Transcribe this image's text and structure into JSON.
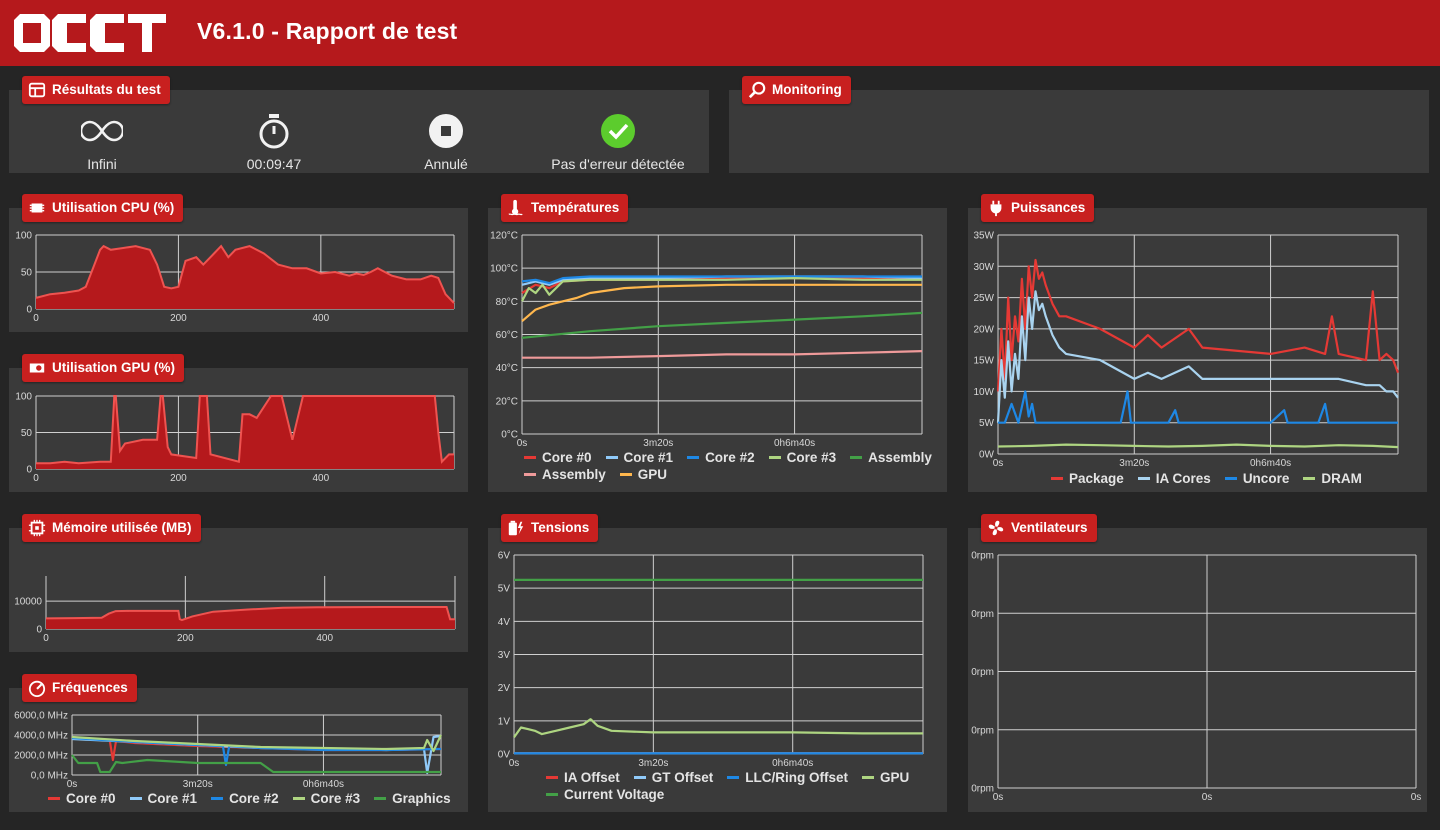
{
  "app": {
    "title": "V6.1.0 - Rapport de test",
    "logo_text": "OCCT"
  },
  "results": {
    "title": "Résultats du test",
    "items": [
      {
        "icon": "infinity-icon",
        "label": "Infini"
      },
      {
        "icon": "stopwatch-icon",
        "label": "00:09:47"
      },
      {
        "icon": "stop-icon",
        "label": "Annulé"
      },
      {
        "icon": "check-icon",
        "label": "Pas d'erreur détectée",
        "color": "#5ccc2d"
      }
    ]
  },
  "monitoring": {
    "title": "Monitoring"
  },
  "colors": {
    "accent": "#c8201f",
    "fill": "#b5191c",
    "line": "#ef5350"
  },
  "panels": {
    "cpu": {
      "title": "Utilisation CPU (%)"
    },
    "gpu": {
      "title": "Utilisation GPU (%)"
    },
    "mem": {
      "title": "Mémoire utilisée (MB)"
    },
    "freq": {
      "title": "Fréquences"
    },
    "temp": {
      "title": "Températures"
    },
    "volt": {
      "title": "Tensions"
    },
    "power": {
      "title": "Puissances"
    },
    "fans": {
      "title": "Ventilateurs"
    }
  },
  "chart_data": [
    {
      "id": "cpu",
      "type": "area",
      "title": "Utilisation CPU (%)",
      "xlim": [
        0,
        587
      ],
      "xticks": [
        0,
        200,
        400
      ],
      "ylim": [
        0,
        100
      ],
      "yticks": [
        0,
        50,
        100
      ],
      "series": [
        {
          "color": "#ef5350",
          "x": [
            0,
            20,
            40,
            60,
            70,
            80,
            90,
            95,
            105,
            120,
            140,
            160,
            170,
            180,
            190,
            200,
            210,
            225,
            235,
            250,
            260,
            270,
            280,
            300,
            320,
            340,
            360,
            380,
            400,
            420,
            440,
            450,
            460,
            470,
            480,
            500,
            520,
            540,
            555,
            565,
            575,
            587
          ],
          "y": [
            15,
            20,
            22,
            25,
            30,
            55,
            80,
            85,
            80,
            82,
            85,
            80,
            60,
            30,
            28,
            30,
            65,
            70,
            60,
            75,
            85,
            70,
            80,
            85,
            75,
            60,
            55,
            55,
            48,
            50,
            45,
            48,
            46,
            50,
            55,
            45,
            40,
            40,
            45,
            42,
            20,
            8
          ]
        }
      ]
    },
    {
      "id": "gpu",
      "type": "area",
      "title": "Utilisation GPU (%)",
      "xlim": [
        0,
        587
      ],
      "xticks": [
        0,
        200,
        400
      ],
      "ylim": [
        0,
        100
      ],
      "yticks": [
        0,
        50,
        100
      ],
      "series": [
        {
          "color": "#ef5350",
          "x": [
            0,
            20,
            40,
            60,
            90,
            105,
            110,
            112,
            118,
            125,
            150,
            170,
            175,
            178,
            185,
            190,
            225,
            230,
            240,
            245,
            285,
            290,
            300,
            310,
            330,
            345,
            360,
            375,
            560,
            565,
            570,
            580,
            587
          ],
          "y": [
            8,
            8,
            10,
            8,
            10,
            10,
            100,
            100,
            25,
            35,
            40,
            40,
            100,
            100,
            30,
            20,
            15,
            100,
            100,
            20,
            10,
            75,
            75,
            70,
            100,
            100,
            40,
            100,
            100,
            50,
            10,
            20,
            20
          ]
        }
      ]
    },
    {
      "id": "mem",
      "type": "area",
      "title": "Mémoire utilisée (MB)",
      "xlim": [
        0,
        587
      ],
      "xticks": [
        0,
        200,
        400
      ],
      "ylim": [
        0,
        19000
      ],
      "yticks": [
        0,
        10000
      ],
      "series": [
        {
          "color": "#ef5350",
          "x": [
            0,
            40,
            80,
            90,
            100,
            120,
            190,
            192,
            195,
            210,
            240,
            290,
            340,
            390,
            400,
            500,
            575,
            580,
            587
          ],
          "y": [
            3800,
            3900,
            4000,
            5500,
            6400,
            6500,
            6500,
            3500,
            3200,
            4500,
            6200,
            7000,
            7600,
            7800,
            7800,
            7900,
            7900,
            3500,
            3500
          ]
        }
      ]
    },
    {
      "id": "freq",
      "type": "line",
      "title": "Fréquences",
      "xlim": [
        0,
        587
      ],
      "xticks": [
        0,
        200,
        400
      ],
      "xtick_labels": [
        "0s",
        "3m20s",
        "0h6m40s"
      ],
      "ylim": [
        0,
        6000
      ],
      "yticks": [
        0,
        2000,
        4000,
        6000
      ],
      "ytick_labels": [
        "0,0 MHz",
        "2000,0 MHz",
        "4000,0 MHz",
        "6000,0 MHz"
      ],
      "series": [
        {
          "name": "Core #0",
          "color": "#e53935",
          "x": [
            0,
            60,
            65,
            70,
            100,
            200,
            300,
            400,
            500,
            587
          ],
          "y": [
            3700,
            3500,
            1500,
            3400,
            3200,
            2900,
            2700,
            2500,
            2500,
            2600
          ]
        },
        {
          "name": "Core #1",
          "color": "#90caf9",
          "x": [
            0,
            100,
            200,
            300,
            400,
            500,
            560,
            565,
            575,
            587
          ],
          "y": [
            3600,
            3300,
            3000,
            2700,
            2600,
            2500,
            2600,
            200,
            3800,
            3900
          ]
        },
        {
          "name": "Core #2",
          "color": "#1e88e5",
          "x": [
            0,
            100,
            200,
            240,
            245,
            250,
            300,
            400,
            500,
            587
          ],
          "y": [
            3700,
            3300,
            3000,
            2900,
            1000,
            2900,
            2700,
            2500,
            2500,
            2600
          ]
        },
        {
          "name": "Core #3",
          "color": "#aed581",
          "x": [
            0,
            100,
            200,
            300,
            400,
            500,
            560,
            565,
            575,
            587
          ],
          "y": [
            3800,
            3400,
            3100,
            2800,
            2700,
            2600,
            2700,
            3500,
            2400,
            4000
          ]
        },
        {
          "name": "Graphics",
          "color": "#43a047",
          "x": [
            0,
            10,
            40,
            45,
            60,
            70,
            80,
            120,
            200,
            250,
            300,
            320,
            330,
            450,
            587
          ],
          "y": [
            2000,
            1200,
            1200,
            300,
            300,
            1300,
            1200,
            1500,
            1200,
            1200,
            1200,
            300,
            300,
            300,
            300
          ]
        }
      ]
    },
    {
      "id": "temp",
      "type": "line",
      "title": "Températures",
      "xlim": [
        0,
        587
      ],
      "xticks": [
        0,
        200,
        400
      ],
      "xtick_labels": [
        "0s",
        "3m20s",
        "0h6m40s"
      ],
      "ylim": [
        0,
        120
      ],
      "yticks": [
        0,
        20,
        40,
        60,
        80,
        100,
        120
      ],
      "ytick_labels": [
        "0°C",
        "20°C",
        "40°C",
        "60°C",
        "80°C",
        "100°C",
        "120°C"
      ],
      "series": [
        {
          "name": "Core #0",
          "color": "#e53935",
          "x": [
            0,
            20,
            40,
            60,
            100,
            200,
            300,
            400,
            500,
            587
          ],
          "y": [
            85,
            90,
            88,
            92,
            93,
            93,
            94,
            94,
            94,
            94
          ]
        },
        {
          "name": "Core #1",
          "color": "#90caf9",
          "x": [
            0,
            20,
            40,
            60,
            100,
            200,
            300,
            400,
            500,
            587
          ],
          "y": [
            90,
            92,
            90,
            93,
            94,
            94,
            95,
            95,
            95,
            94
          ]
        },
        {
          "name": "Core #2",
          "color": "#1e88e5",
          "x": [
            0,
            20,
            40,
            60,
            100,
            200,
            300,
            400,
            500,
            587
          ],
          "y": [
            92,
            93,
            91,
            94,
            95,
            95,
            95,
            95,
            95,
            95
          ]
        },
        {
          "name": "Core #3",
          "color": "#aed581",
          "x": [
            0,
            10,
            20,
            30,
            40,
            60,
            100,
            200,
            300,
            400,
            500,
            587
          ],
          "y": [
            80,
            88,
            85,
            90,
            84,
            92,
            93,
            93,
            93,
            94,
            93,
            93
          ]
        },
        {
          "name": "Assembly",
          "color": "#43a047",
          "x": [
            0,
            100,
            200,
            300,
            400,
            500,
            587
          ],
          "y": [
            58,
            62,
            65,
            67,
            69,
            71,
            73
          ]
        },
        {
          "name": "Assembly",
          "color": "#ef9a9a",
          "x": [
            0,
            100,
            200,
            300,
            400,
            500,
            587
          ],
          "y": [
            46,
            46,
            47,
            48,
            48,
            49,
            50
          ]
        },
        {
          "name": "GPU",
          "color": "#ffb74d",
          "x": [
            0,
            20,
            40,
            60,
            80,
            100,
            150,
            200,
            300,
            400,
            500,
            587
          ],
          "y": [
            68,
            75,
            78,
            80,
            82,
            85,
            88,
            89,
            90,
            90,
            90,
            90
          ]
        }
      ]
    },
    {
      "id": "volt",
      "type": "line",
      "title": "Tensions",
      "xlim": [
        0,
        587
      ],
      "xticks": [
        0,
        200,
        400
      ],
      "xtick_labels": [
        "0s",
        "3m20s",
        "0h6m40s"
      ],
      "ylim": [
        0,
        6
      ],
      "yticks": [
        0,
        1,
        2,
        3,
        4,
        5,
        6
      ],
      "ytick_labels": [
        "0V",
        "1V",
        "2V",
        "3V",
        "4V",
        "5V",
        "6V"
      ],
      "series": [
        {
          "name": "IA Offset",
          "color": "#e53935",
          "x": [
            0,
            587
          ],
          "y": [
            0.02,
            0.02
          ]
        },
        {
          "name": "GT Offset",
          "color": "#90caf9",
          "x": [
            0,
            587
          ],
          "y": [
            0.02,
            0.02
          ]
        },
        {
          "name": "LLC/Ring Offset",
          "color": "#1e88e5",
          "x": [
            0,
            587
          ],
          "y": [
            0.02,
            0.02
          ]
        },
        {
          "name": "GPU",
          "color": "#aed581",
          "x": [
            0,
            10,
            20,
            30,
            40,
            60,
            80,
            100,
            110,
            120,
            140,
            200,
            300,
            400,
            500,
            587
          ],
          "y": [
            0.5,
            0.8,
            0.75,
            0.7,
            0.6,
            0.7,
            0.8,
            0.9,
            1.05,
            0.85,
            0.7,
            0.65,
            0.65,
            0.65,
            0.62,
            0.62
          ]
        },
        {
          "name": "Current Voltage",
          "color": "#43a047",
          "x": [
            0,
            587
          ],
          "y": [
            5.25,
            5.25
          ]
        }
      ]
    },
    {
      "id": "power",
      "type": "line",
      "title": "Puissances",
      "xlim": [
        0,
        587
      ],
      "xticks": [
        0,
        200,
        400
      ],
      "xtick_labels": [
        "0s",
        "3m20s",
        "0h6m40s"
      ],
      "ylim": [
        0,
        35
      ],
      "yticks": [
        0,
        5,
        10,
        15,
        20,
        25,
        30,
        35
      ],
      "ytick_labels": [
        "0W",
        "5W",
        "10W",
        "15W",
        "20W",
        "25W",
        "30W",
        "35W"
      ],
      "series": [
        {
          "name": "Package",
          "color": "#e53935",
          "x": [
            0,
            5,
            10,
            15,
            20,
            25,
            30,
            35,
            40,
            45,
            50,
            55,
            60,
            65,
            70,
            80,
            90,
            100,
            150,
            200,
            220,
            240,
            280,
            300,
            400,
            450,
            480,
            490,
            500,
            540,
            550,
            560,
            570,
            580,
            587
          ],
          "y": [
            10,
            20,
            12,
            25,
            15,
            22,
            18,
            28,
            20,
            30,
            25,
            31,
            28,
            29,
            27,
            24,
            22,
            22,
            20,
            17,
            19,
            17,
            20,
            17,
            16,
            17,
            16,
            22,
            16,
            15,
            26,
            15,
            16,
            15,
            13
          ]
        },
        {
          "name": "IA Cores",
          "color": "#a9d3ef",
          "x": [
            0,
            5,
            10,
            15,
            20,
            25,
            30,
            35,
            40,
            45,
            50,
            55,
            60,
            65,
            70,
            80,
            90,
            100,
            150,
            200,
            220,
            240,
            280,
            300,
            400,
            450,
            500,
            540,
            560,
            570,
            580,
            587
          ],
          "y": [
            5,
            15,
            9,
            18,
            10,
            16,
            12,
            22,
            15,
            25,
            20,
            26,
            23,
            24,
            22,
            19,
            17,
            16,
            15,
            12,
            13,
            12,
            14,
            12,
            12,
            12,
            12,
            11,
            11,
            10,
            10,
            9
          ]
        },
        {
          "name": "Uncore",
          "color": "#1e88e5",
          "x": [
            0,
            10,
            20,
            30,
            40,
            45,
            50,
            55,
            60,
            70,
            100,
            180,
            190,
            195,
            200,
            250,
            260,
            265,
            270,
            400,
            420,
            425,
            430,
            470,
            480,
            485,
            490,
            587
          ],
          "y": [
            5,
            5,
            8,
            5,
            10,
            6,
            8,
            5,
            5,
            5,
            5,
            5,
            10,
            5,
            5,
            5,
            7,
            5,
            5,
            5,
            7,
            5,
            5,
            5,
            8,
            5,
            5,
            5
          ]
        },
        {
          "name": "DRAM",
          "color": "#aed581",
          "x": [
            0,
            50,
            100,
            150,
            200,
            250,
            300,
            350,
            400,
            450,
            500,
            550,
            587
          ],
          "y": [
            1.2,
            1.3,
            1.5,
            1.4,
            1.3,
            1.2,
            1.3,
            1.5,
            1.3,
            1.2,
            1.4,
            1.3,
            1.1
          ]
        }
      ]
    },
    {
      "id": "fans",
      "type": "line",
      "title": "Ventilateurs",
      "xlim": [
        0,
        2
      ],
      "xticks": [
        0,
        1,
        2
      ],
      "xtick_labels": [
        "0s",
        "0s",
        "0s"
      ],
      "ylim": [
        0,
        4
      ],
      "yticks": [
        0,
        1,
        2,
        3,
        4
      ],
      "ytick_labels": [
        "0rpm",
        "0rpm",
        "0rpm",
        "0rpm",
        "0rpm"
      ],
      "series": []
    }
  ]
}
